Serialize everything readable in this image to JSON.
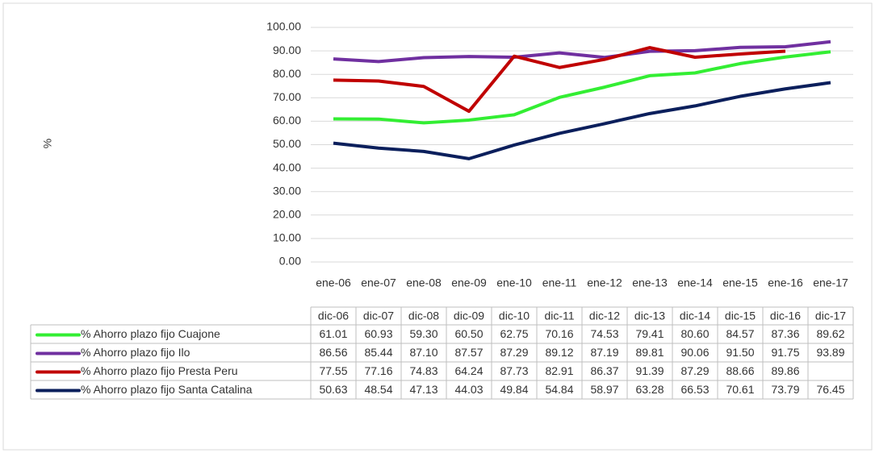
{
  "chart_data": {
    "type": "line",
    "y_label": "%",
    "categories": [
      "ene-06",
      "ene-07",
      "ene-08",
      "ene-09",
      "ene-10",
      "ene-11",
      "ene-12",
      "ene-13",
      "ene-14",
      "ene-15",
      "ene-16",
      "ene-17"
    ],
    "table_columns": [
      "dic-06",
      "dic-07",
      "dic-08",
      "dic-09",
      "dic-10",
      "dic-11",
      "dic-12",
      "dic-13",
      "dic-14",
      "dic-15",
      "dic-16",
      "dic-17"
    ],
    "ylim": [
      0,
      100
    ],
    "yticks": [
      {
        "value": 0,
        "label": "0.00"
      },
      {
        "value": 10,
        "label": "10.00"
      },
      {
        "value": 20,
        "label": "20.00"
      },
      {
        "value": 30,
        "label": "30.00"
      },
      {
        "value": 40,
        "label": "40.00"
      },
      {
        "value": 50,
        "label": "50.00"
      },
      {
        "value": 60,
        "label": "60.00"
      },
      {
        "value": 70,
        "label": "70.00"
      },
      {
        "value": 80,
        "label": "80.00"
      },
      {
        "value": 90,
        "label": "90.00"
      },
      {
        "value": 100,
        "label": "100.00"
      }
    ],
    "grid": true,
    "series": [
      {
        "name": "% Ahorro plazo fijo Cuajone",
        "color": "#33ee33",
        "values": [
          61.01,
          60.93,
          59.3,
          60.5,
          62.75,
          70.16,
          74.53,
          79.41,
          80.6,
          84.57,
          87.36,
          89.62
        ],
        "value_labels": [
          "61.01",
          "60.93",
          "59.30",
          "60.50",
          "62.75",
          "70.16",
          "74.53",
          "79.41",
          "80.60",
          "84.57",
          "87.36",
          "89.62"
        ]
      },
      {
        "name": "% Ahorro plazo fijo Ilo",
        "color": "#7030a0",
        "values": [
          86.56,
          85.44,
          87.1,
          87.57,
          87.29,
          89.12,
          87.19,
          89.81,
          90.06,
          91.5,
          91.75,
          93.89
        ],
        "value_labels": [
          "86.56",
          "85.44",
          "87.10",
          "87.57",
          "87.29",
          "89.12",
          "87.19",
          "89.81",
          "90.06",
          "91.50",
          "91.75",
          "93.89"
        ]
      },
      {
        "name": "% Ahorro plazo fijo Presta Peru",
        "color": "#c00000",
        "values": [
          77.55,
          77.16,
          74.83,
          64.24,
          87.73,
          82.91,
          86.37,
          91.39,
          87.29,
          88.66,
          89.86,
          null
        ],
        "value_labels": [
          "77.55",
          "77.16",
          "74.83",
          "64.24",
          "87.73",
          "82.91",
          "86.37",
          "91.39",
          "87.29",
          "88.66",
          "89.86",
          null
        ]
      },
      {
        "name": "%  Ahorro plazo fijo Santa Catalina",
        "color": "#0b1f5c",
        "values": [
          50.63,
          48.54,
          47.13,
          44.03,
          49.84,
          54.84,
          58.97,
          63.28,
          66.53,
          70.61,
          73.79,
          76.45
        ],
        "value_labels": [
          "50.63",
          "48.54",
          "47.13",
          "44.03",
          "49.84",
          "54.84",
          "58.97",
          "63.28",
          "66.53",
          "70.61",
          "73.79",
          "76.45"
        ]
      }
    ]
  }
}
